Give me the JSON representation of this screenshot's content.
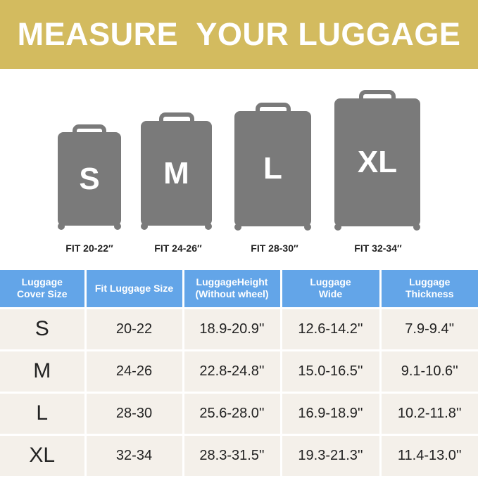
{
  "title": "MEASURE  YOUR LUGGAGE",
  "colors": {
    "banner": "#d3bb5f",
    "table_header": "#63a5e8",
    "suitcase": "#7a7a7a",
    "row_bg": "#f4f0ea"
  },
  "suitcases": [
    {
      "size": "S",
      "fit": "FIT 20-22″"
    },
    {
      "size": "M",
      "fit": "FIT 24-26″"
    },
    {
      "size": "L",
      "fit": "FIT 28-30″"
    },
    {
      "size": "XL",
      "fit": "FIT 32-34″"
    }
  ],
  "table": {
    "headers": [
      "Luggage Cover Size",
      "Fit Luggage Size",
      "LuggageHeight (Without wheel)",
      "Luggage Wide",
      "Luggage Thickness"
    ],
    "rows": [
      [
        "S",
        "20-22",
        "18.9-20.9''",
        "12.6-14.2''",
        "7.9-9.4''"
      ],
      [
        "M",
        "24-26",
        "22.8-24.8''",
        "15.0-16.5''",
        "9.1-10.6''"
      ],
      [
        "L",
        "28-30",
        "25.6-28.0''",
        "16.9-18.9''",
        "10.2-11.8''"
      ],
      [
        "XL",
        "32-34",
        "28.3-31.5''",
        "19.3-21.3''",
        "11.4-13.0''"
      ]
    ]
  }
}
